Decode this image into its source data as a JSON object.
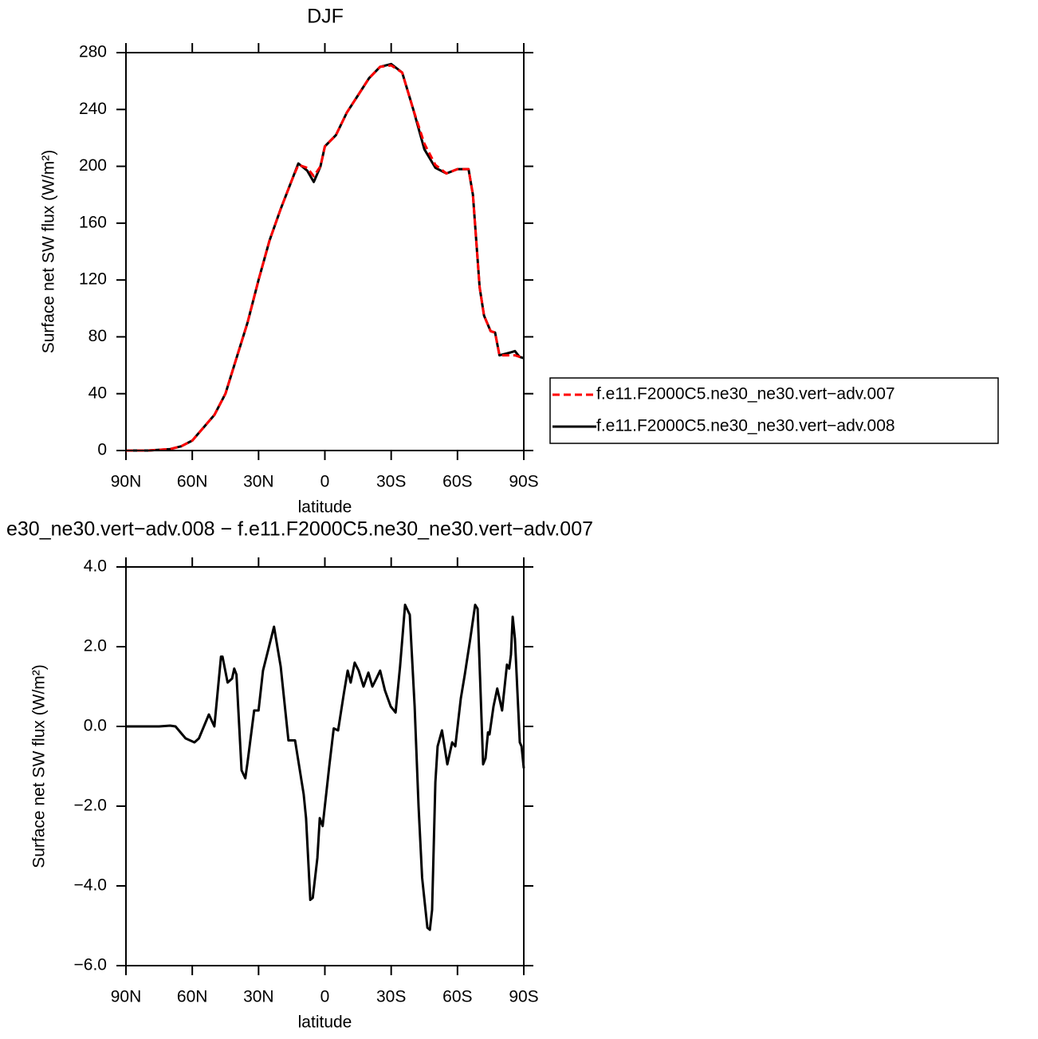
{
  "chart_data": [
    {
      "type": "line",
      "title": "DJF",
      "xlabel": "latitude",
      "ylabel": "Surface net SW flux (W/m²)",
      "x": [
        90,
        80,
        70,
        65,
        60,
        55,
        50,
        45,
        40,
        35,
        30,
        25,
        20,
        15,
        12,
        8,
        5,
        2,
        0,
        -5,
        -10,
        -15,
        -20,
        -25,
        -30,
        -35,
        -40,
        -45,
        -50,
        -55,
        -60,
        -65,
        -67,
        -70,
        -72,
        -75,
        -77,
        -79,
        -84,
        -86,
        -88,
        -90
      ],
      "series": [
        {
          "name": "f.e11.F2000C5.ne30_ne30.vert−adv.007",
          "color": "#ff0000",
          "dash": true,
          "values": [
            0,
            0,
            1,
            3,
            7,
            16,
            25,
            40,
            65,
            90,
            120,
            148,
            170,
            190,
            201,
            199,
            193,
            200,
            214,
            222,
            238,
            250,
            262,
            270,
            271,
            266,
            240,
            216,
            201,
            195,
            198,
            198,
            180,
            115,
            95,
            84,
            83,
            67,
            67,
            67,
            66,
            65
          ]
        },
        {
          "name": "f.e11.F2000C5.ne30_ne30.vert−adv.008",
          "color": "#000000",
          "dash": false,
          "values": [
            0,
            0,
            1,
            3,
            7,
            16,
            25,
            40,
            65,
            90,
            120,
            148,
            170,
            190,
            202,
            197,
            189,
            200,
            214,
            222,
            238,
            250,
            262,
            270,
            272,
            266,
            240,
            212,
            199,
            195,
            198,
            198,
            180,
            115,
            95,
            84,
            83,
            67,
            69,
            70,
            66,
            65
          ]
        }
      ],
      "xlim": [
        90,
        -90
      ],
      "xticks": [
        {
          "value": 90,
          "label": "90N"
        },
        {
          "value": 60,
          "label": "60N"
        },
        {
          "value": 30,
          "label": "30N"
        },
        0,
        {
          "value": -30,
          "label": "30S"
        },
        {
          "value": -60,
          "label": "60S"
        },
        {
          "value": -90,
          "label": "90S"
        }
      ],
      "ylim": [
        0,
        280
      ],
      "yticks": [
        0,
        40,
        80,
        120,
        160,
        200,
        240,
        280
      ],
      "legend": "right"
    },
    {
      "type": "line",
      "title": "e30_ne30.vert−adv.008 − f.e11.F2000C5.ne30_ne30.vert−adv.007",
      "xlabel": "latitude",
      "ylabel": "Surface net SW flux (W/m²)",
      "x": [
        90,
        80,
        75,
        70,
        67.6,
        63,
        59,
        57,
        52.5,
        50,
        47,
        46.3,
        44,
        42,
        41,
        40,
        37.7,
        36,
        35,
        32,
        30,
        28,
        23,
        20,
        16.5,
        13.5,
        9.6,
        8.5,
        6.6,
        5.5,
        3.4,
        2.3,
        1,
        -2,
        -4,
        -6,
        -8.5,
        -10.3,
        -11.7,
        -13.5,
        -15.3,
        -17.5,
        -19.7,
        -21.5,
        -23.3,
        -25,
        -27.2,
        -29.8,
        -32,
        -34,
        -36.3,
        -38.4,
        -40.6,
        -42.4,
        -44,
        -46.4,
        -47.5,
        -48.5,
        -50,
        -51,
        -53,
        -55.4,
        -57.6,
        -59,
        -61.5,
        -63.3,
        -65.8,
        -68,
        -69.1,
        -71.6,
        -72.7,
        -73.8,
        -74.5,
        -76.3,
        -78,
        -80.2,
        -82.4,
        -83.4,
        -84.2,
        -85,
        -86,
        -88.2,
        -89,
        -90
      ],
      "series": [
        {
          "color": "#000000",
          "dash": false,
          "values": [
            0,
            0,
            0,
            0.02,
            0,
            -0.3,
            -0.4,
            -0.3,
            0.3,
            0,
            1.75,
            1.75,
            1.1,
            1.2,
            1.45,
            1.3,
            -1.1,
            -1.3,
            -0.9,
            0.4,
            0.4,
            1.4,
            2.5,
            1.5,
            -0.35,
            -0.35,
            -1.7,
            -2.3,
            -4.35,
            -4.3,
            -3.3,
            -2.3,
            -2.5,
            -1.0,
            -0.05,
            -0.1,
            0.8,
            1.4,
            1.1,
            1.6,
            1.4,
            1.0,
            1.35,
            1.0,
            1.2,
            1.4,
            0.9,
            0.5,
            0.35,
            1.5,
            3.05,
            2.8,
            0.5,
            -2.0,
            -3.8,
            -5.05,
            -5.1,
            -4.6,
            -1.4,
            -0.5,
            -0.1,
            -0.95,
            -0.4,
            -0.5,
            0.7,
            1.3,
            2.2,
            3.05,
            2.95,
            -0.95,
            -0.8,
            -0.15,
            -0.2,
            0.5,
            0.95,
            0.4,
            1.55,
            1.45,
            1.8,
            2.75,
            2.2,
            -0.4,
            -0.5,
            -1.05
          ]
        }
      ],
      "xlim": [
        90,
        -90
      ],
      "xticks": [
        {
          "value": 90,
          "label": "90N"
        },
        {
          "value": 60,
          "label": "60N"
        },
        {
          "value": 30,
          "label": "30N"
        },
        0,
        {
          "value": -30,
          "label": "30S"
        },
        {
          "value": -60,
          "label": "60S"
        },
        {
          "value": -90,
          "label": "90S"
        }
      ],
      "ylim": [
        -6,
        4
      ],
      "yticks": [
        {
          "value": -6,
          "label": "−6.0"
        },
        {
          "value": -4,
          "label": "−4.0"
        },
        {
          "value": -2,
          "label": "−2.0"
        },
        {
          "value": 0,
          "label": "0.0"
        },
        {
          "value": 2,
          "label": "2.0"
        },
        {
          "value": 4,
          "label": "4.0"
        }
      ]
    }
  ]
}
